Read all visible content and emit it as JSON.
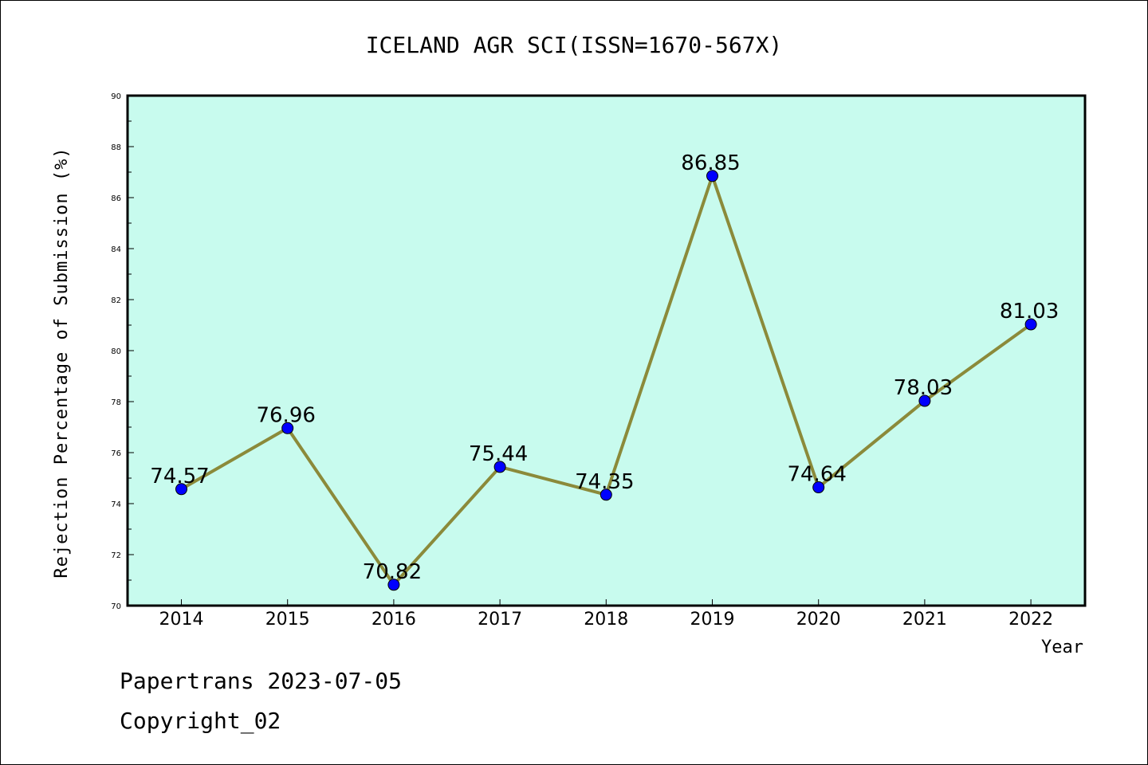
{
  "chart_data": {
    "type": "line",
    "title": "ICELAND AGR SCI(ISSN=1670-567X)",
    "xlabel": "Year",
    "ylabel": "Rejection Percentage of Submission (%)",
    "categories": [
      "2014",
      "2015",
      "2016",
      "2017",
      "2018",
      "2019",
      "2020",
      "2021",
      "2022"
    ],
    "values": [
      74.57,
      76.96,
      70.82,
      75.44,
      74.35,
      86.85,
      74.64,
      78.03,
      81.03
    ],
    "data_labels": [
      "74.57",
      "76.96",
      "70.82",
      "75.44",
      "74.35",
      "86.85",
      "74.64",
      "78.03",
      "81.03"
    ],
    "ylim": [
      70,
      90
    ],
    "yticks": [
      "70",
      "72",
      "74",
      "76",
      "78",
      "80",
      "82",
      "84",
      "86",
      "88",
      "90"
    ],
    "grid": false,
    "colors": {
      "plot_background": "#c8fbee",
      "line": "#8b8a3a",
      "marker": "#0000ff"
    }
  },
  "footer": {
    "line1": "Papertrans 2023-07-05",
    "line2": "Copyright_02"
  }
}
